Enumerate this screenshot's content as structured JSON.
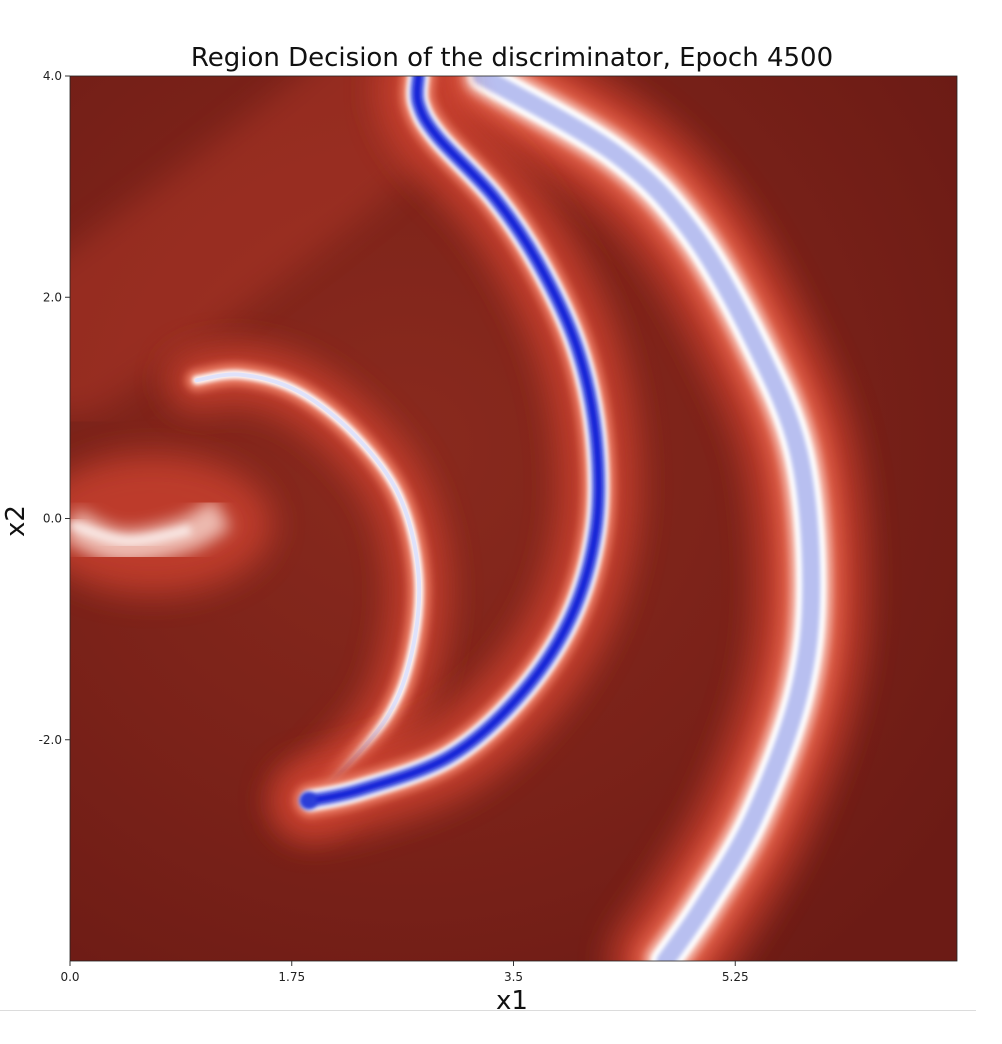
{
  "chart_data": {
    "type": "heatmap",
    "title": "Region Decision of the discriminator, Epoch 4500",
    "xlabel": "x1",
    "ylabel": "x2",
    "xlim": [
      0.0,
      7.0
    ],
    "ylim": [
      -4.0,
      4.0
    ],
    "x_ticks": [
      0.0,
      1.75,
      3.5,
      5.25
    ],
    "x_tick_labels": [
      "0.0",
      "1.75",
      "3.5",
      "5.25"
    ],
    "y_ticks": [
      4.0,
      2.0,
      0.0,
      -2.0
    ],
    "y_tick_labels": [
      "4.0",
      "2.0",
      "0.0",
      "-2.0"
    ],
    "colormap": "seismic (low = blue, high = dark red)",
    "colors": {
      "background_red": "#761e17",
      "mid_red": "#c8402d",
      "boundary_white": "#ffffff",
      "deep_blue": "#0d1fd6",
      "light_blue": "#b8bff0"
    },
    "regions": [
      {
        "kind": "inner-crescent-boundary",
        "outer_edge": [
          [
            1.0,
            1.25
          ],
          [
            1.35,
            1.3
          ],
          [
            1.8,
            1.15
          ],
          [
            2.25,
            0.75
          ],
          [
            2.6,
            0.2
          ],
          [
            2.75,
            -0.5
          ],
          [
            2.7,
            -1.2
          ],
          [
            2.5,
            -1.8
          ],
          [
            2.05,
            -2.4
          ],
          [
            1.9,
            -2.55
          ]
        ],
        "inner_edge": [
          [
            1.9,
            -2.55
          ],
          [
            2.3,
            -2.45
          ],
          [
            3.0,
            -2.15
          ],
          [
            3.55,
            -1.6
          ],
          [
            3.95,
            -0.9
          ],
          [
            4.15,
            -0.1
          ],
          [
            4.15,
            0.75
          ],
          [
            4.0,
            1.55
          ],
          [
            3.7,
            2.3
          ],
          [
            3.35,
            2.9
          ],
          [
            2.9,
            3.45
          ],
          [
            2.75,
            3.75
          ],
          [
            2.75,
            4.0
          ]
        ],
        "tip": [
          1.88,
          -2.55
        ]
      },
      {
        "kind": "outer-arc-boundary",
        "path": [
          [
            3.25,
            4.0
          ],
          [
            4.3,
            3.3
          ],
          [
            4.9,
            2.6
          ],
          [
            5.4,
            1.6
          ],
          [
            5.75,
            0.6
          ],
          [
            5.85,
            -0.6
          ],
          [
            5.75,
            -1.6
          ],
          [
            5.4,
            -2.7
          ],
          [
            5.0,
            -3.5
          ],
          [
            4.7,
            -4.0
          ]
        ]
      },
      {
        "kind": "left-edge-white-glow",
        "center": [
          0.65,
          -0.05
        ]
      }
    ]
  }
}
